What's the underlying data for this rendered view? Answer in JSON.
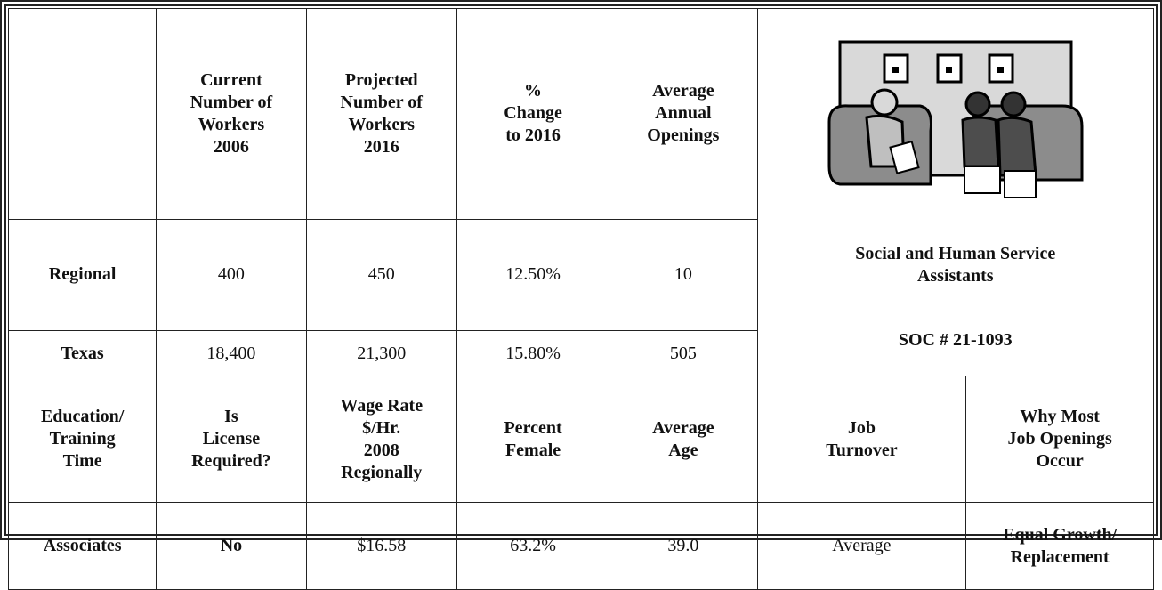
{
  "table": {
    "header": [
      "Current\nNumber of\nWorkers\n2006",
      "Projected\nNumber of\nWorkers\n2016",
      "%\nChange\nto 2016",
      "Average\nAnnual\nOpenings"
    ],
    "rows": [
      [
        "Regional",
        "400",
        "450",
        "12.50%",
        "10"
      ],
      [
        "Texas",
        "18,400",
        "21,300",
        "15.80%",
        "505"
      ]
    ],
    "occupation": {
      "title": "Social and Human Service\nAssistants",
      "soc": "SOC # 21-1093"
    },
    "header2": [
      "Education/\nTraining\nTime",
      "Is\nLicense\nRequired?",
      "Wage Rate\n$/Hr.\n2008\nRegionally",
      "Percent\nFemale",
      "Average\nAge",
      "Job\nTurnover",
      "Why Most\nJob Openings\nOccur"
    ],
    "row2": [
      "Associates",
      "No",
      "$16.58",
      "63.2%",
      "39.0",
      "Average",
      "Equal Growth/\nReplacement"
    ]
  }
}
